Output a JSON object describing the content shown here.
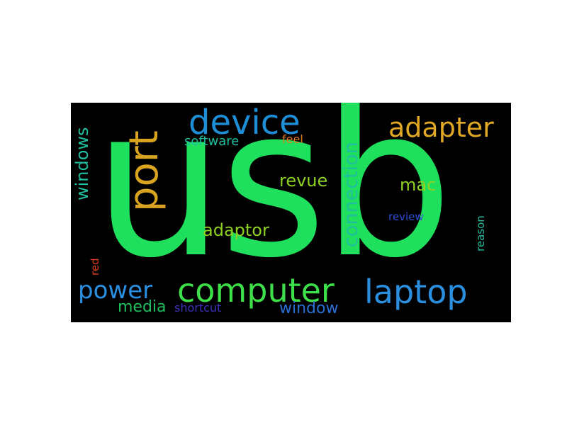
{
  "word_cloud": {
    "background": "#000000",
    "words": [
      {
        "id": "usb",
        "text": "usb",
        "color": "#1fe05c"
      },
      {
        "id": "device",
        "text": "device",
        "color": "#1e8fd6"
      },
      {
        "id": "port",
        "text": "port",
        "color": "#d9a520"
      },
      {
        "id": "adapter",
        "text": "adapter",
        "color": "#e0a825"
      },
      {
        "id": "computer",
        "text": "computer",
        "color": "#3ee04a"
      },
      {
        "id": "laptop",
        "text": "laptop",
        "color": "#2b8fe0"
      },
      {
        "id": "power",
        "text": "power",
        "color": "#2a8fe0"
      },
      {
        "id": "connection",
        "text": "connection",
        "color": "#1fbfa0"
      },
      {
        "id": "windows",
        "text": "windows",
        "color": "#1fbfa0"
      },
      {
        "id": "software",
        "text": "software",
        "color": "#1fbfa0"
      },
      {
        "id": "feel",
        "text": "feel",
        "color": "#e07a20"
      },
      {
        "id": "revue",
        "text": "revue",
        "color": "#8fd020"
      },
      {
        "id": "mac",
        "text": "mac",
        "color": "#8fd020"
      },
      {
        "id": "adaptor",
        "text": "adaptor",
        "color": "#8fd020"
      },
      {
        "id": "review",
        "text": "review",
        "color": "#2f4fd0"
      },
      {
        "id": "reason",
        "text": "reason",
        "color": "#1fbfa0"
      },
      {
        "id": "red",
        "text": "red",
        "color": "#e04020"
      },
      {
        "id": "media",
        "text": "media",
        "color": "#1fbf60"
      },
      {
        "id": "shortcut",
        "text": "shortcut",
        "color": "#4030c0"
      },
      {
        "id": "window",
        "text": "window",
        "color": "#2a6fd0"
      }
    ]
  }
}
